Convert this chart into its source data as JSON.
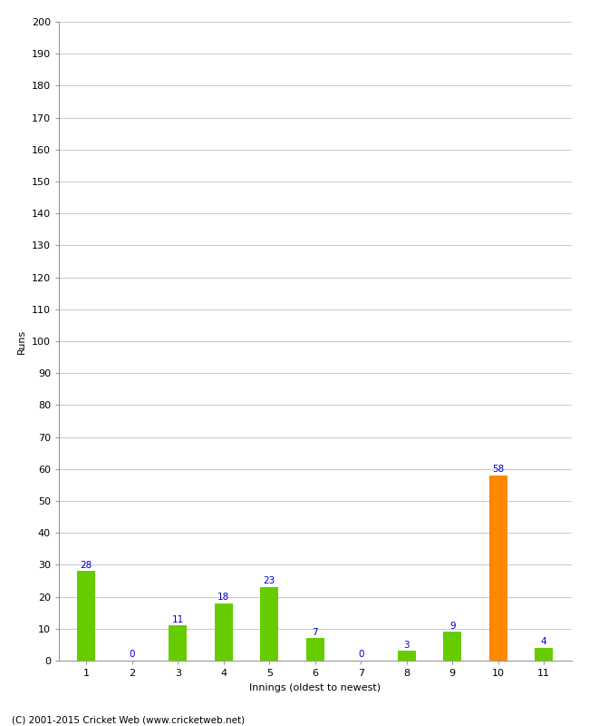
{
  "title": "",
  "xlabel": "Innings (oldest to newest)",
  "ylabel": "Runs",
  "categories": [
    "1",
    "2",
    "3",
    "4",
    "5",
    "6",
    "7",
    "8",
    "9",
    "10",
    "11"
  ],
  "values": [
    28,
    0,
    11,
    18,
    23,
    7,
    0,
    3,
    9,
    58,
    4
  ],
  "bar_colors": [
    "#66cc00",
    "#66cc00",
    "#66cc00",
    "#66cc00",
    "#66cc00",
    "#66cc00",
    "#66cc00",
    "#66cc00",
    "#66cc00",
    "#ff8800",
    "#66cc00"
  ],
  "ylim": [
    0,
    200
  ],
  "yticks": [
    0,
    10,
    20,
    30,
    40,
    50,
    60,
    70,
    80,
    90,
    100,
    110,
    120,
    130,
    140,
    150,
    160,
    170,
    180,
    190,
    200
  ],
  "label_color": "#0000cc",
  "label_fontsize": 7.5,
  "axis_label_fontsize": 8,
  "tick_fontsize": 8,
  "footer": "(C) 2001-2015 Cricket Web (www.cricketweb.net)",
  "background_color": "#ffffff",
  "grid_color": "#cccccc",
  "bar_width": 0.4
}
